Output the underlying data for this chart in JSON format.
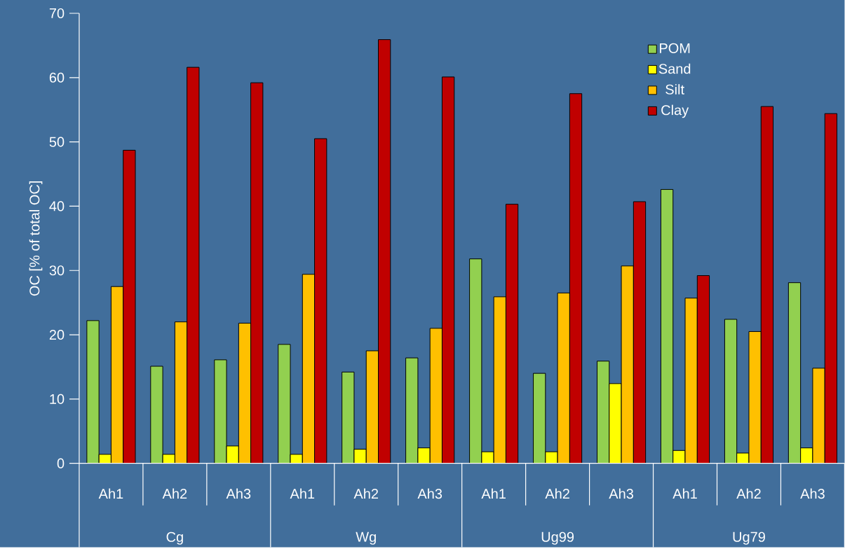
{
  "chart_data": {
    "type": "bar",
    "ylabel": "OC [% of total OC]",
    "categories": [
      "Ah1",
      "Ah2",
      "Ah3",
      "Ah1",
      "Ah2",
      "Ah3",
      "Ah1",
      "Ah2",
      "Ah3",
      "Ah1",
      "Ah2",
      "Ah3"
    ],
    "series": [
      {
        "name": "POM",
        "color": "#92d050",
        "values": [
          22.2,
          15.1,
          16.1,
          18.5,
          14.2,
          16.4,
          31.8,
          14.0,
          15.9,
          42.6,
          22.4,
          28.1
        ]
      },
      {
        "name": "Sand",
        "color": "#ffff00",
        "values": [
          1.4,
          1.4,
          2.7,
          1.4,
          2.2,
          2.4,
          1.8,
          1.8,
          12.4,
          2.0,
          1.6,
          2.4
        ]
      },
      {
        "name": "Silt",
        "color": "#ffc000",
        "values": [
          27.5,
          22.0,
          21.8,
          29.4,
          17.5,
          21.0,
          25.9,
          26.5,
          30.7,
          25.7,
          20.5,
          14.8
        ]
      },
      {
        "name": "Clay",
        "color": "#c00000",
        "values": [
          48.7,
          61.6,
          59.2,
          50.5,
          65.9,
          60.1,
          40.3,
          57.5,
          40.7,
          29.2,
          55.5,
          54.4
        ]
      }
    ],
    "annotations": [
      "Cg",
      "Wg",
      "Ug99",
      "Ug79"
    ],
    "ylim": [
      0,
      70
    ],
    "yticks": [
      0,
      10,
      20,
      30,
      40,
      50,
      60,
      70
    ],
    "legend": "top right"
  }
}
